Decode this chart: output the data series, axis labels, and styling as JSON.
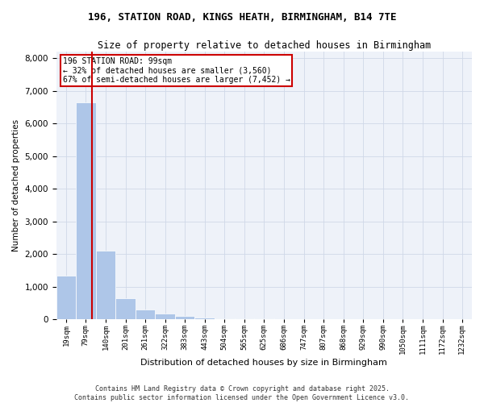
{
  "title1": "196, STATION ROAD, KINGS HEATH, BIRMINGHAM, B14 7TE",
  "title2": "Size of property relative to detached houses in Birmingham",
  "xlabel": "Distribution of detached houses by size in Birmingham",
  "ylabel": "Number of detached properties",
  "annotation_title": "196 STATION ROAD: 99sqm",
  "annotation_line1": "← 32% of detached houses are smaller (3,560)",
  "annotation_line2": "67% of semi-detached houses are larger (7,452) →",
  "bins": [
    19,
    79,
    140,
    201,
    261,
    322,
    383,
    443,
    504,
    565,
    625,
    686,
    747,
    807,
    868,
    929,
    990,
    1050,
    1111,
    1172,
    1232
  ],
  "values": [
    1350,
    6650,
    2100,
    660,
    300,
    175,
    100,
    55,
    40,
    40,
    25,
    15,
    10,
    5,
    3,
    2,
    1,
    1,
    1,
    1,
    1
  ],
  "bar_color": "#aec6e8",
  "vline_x": 99,
  "vline_color": "#cc0000",
  "annotation_box_color": "#cc0000",
  "grid_color": "#d0d8e8",
  "background_color": "#eef2f9",
  "fig_background": "#ffffff",
  "ylim": [
    0,
    8200
  ],
  "yticks": [
    0,
    1000,
    2000,
    3000,
    4000,
    5000,
    6000,
    7000,
    8000
  ],
  "footnote1": "Contains HM Land Registry data © Crown copyright and database right 2025.",
  "footnote2": "Contains public sector information licensed under the Open Government Licence v3.0."
}
